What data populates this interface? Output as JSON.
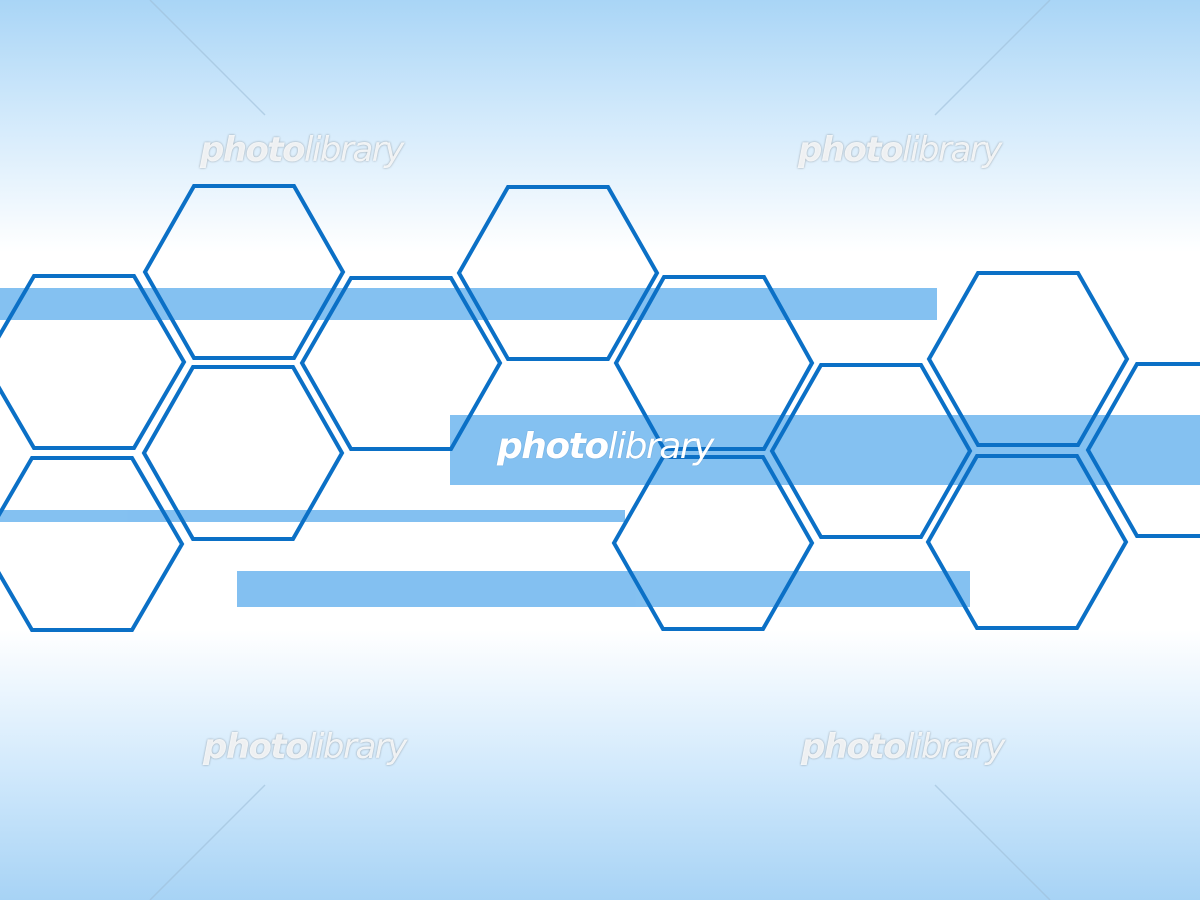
{
  "watermark": {
    "bold_part": "photo",
    "light_part": "library"
  },
  "colors": {
    "hexagon_stroke": "#0b70c6",
    "band_fill": "#6eb6ef",
    "background_light": "#ffffff",
    "background_edge": "#a9d5f6"
  }
}
